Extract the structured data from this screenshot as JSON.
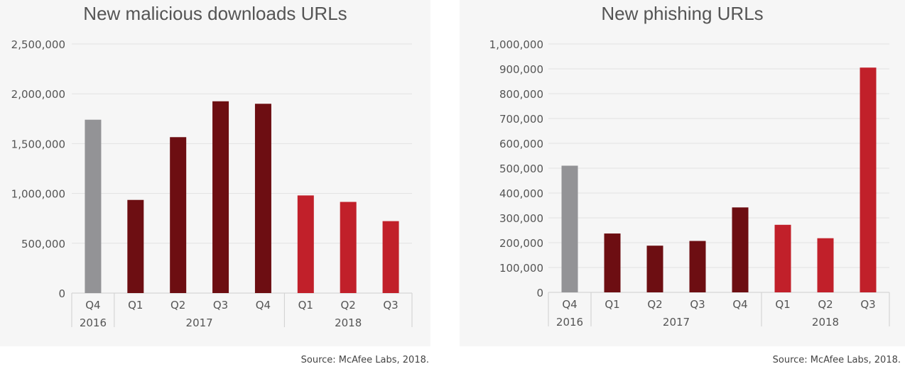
{
  "colors": {
    "q4_2016": "#939396",
    "year_2017": "#6d0e12",
    "year_2018": "#c1202a",
    "grid": "#e2e2e2",
    "axis_text": "#555555"
  },
  "chart_data": [
    {
      "type": "bar",
      "title": "New malicious downloads URLs",
      "categories": [
        "Q4",
        "Q1",
        "Q2",
        "Q3",
        "Q4",
        "Q1",
        "Q2",
        "Q3"
      ],
      "groups": [
        {
          "label": "2016",
          "count": 1
        },
        {
          "label": "2017",
          "count": 4
        },
        {
          "label": "2018",
          "count": 3
        }
      ],
      "values": [
        1740000,
        935000,
        1565000,
        1925000,
        1900000,
        980000,
        915000,
        722000
      ],
      "yticks": [
        "0",
        "500,000",
        "1,000,000",
        "1,500,000",
        "2,000,000",
        "2,500,000"
      ],
      "ylim": [
        0,
        2500000
      ],
      "grid": true
    },
    {
      "type": "bar",
      "title": "New phishing URLs",
      "categories": [
        "Q4",
        "Q1",
        "Q2",
        "Q3",
        "Q4",
        "Q1",
        "Q2",
        "Q3"
      ],
      "groups": [
        {
          "label": "2016",
          "count": 1
        },
        {
          "label": "2017",
          "count": 4
        },
        {
          "label": "2018",
          "count": 3
        }
      ],
      "values": [
        510000,
        237000,
        188000,
        207000,
        342000,
        272000,
        218000,
        905000
      ],
      "yticks": [
        "0",
        "100,000",
        "200,000",
        "300,000",
        "400,000",
        "500,000",
        "600,000",
        "700,000",
        "800,000",
        "900,000",
        "1,000,000"
      ],
      "ylim": [
        0,
        1000000
      ],
      "grid": true
    }
  ],
  "source_left": "Source: McAfee Labs, 2018.",
  "source_right": "Source: McAfee Labs, 2018."
}
